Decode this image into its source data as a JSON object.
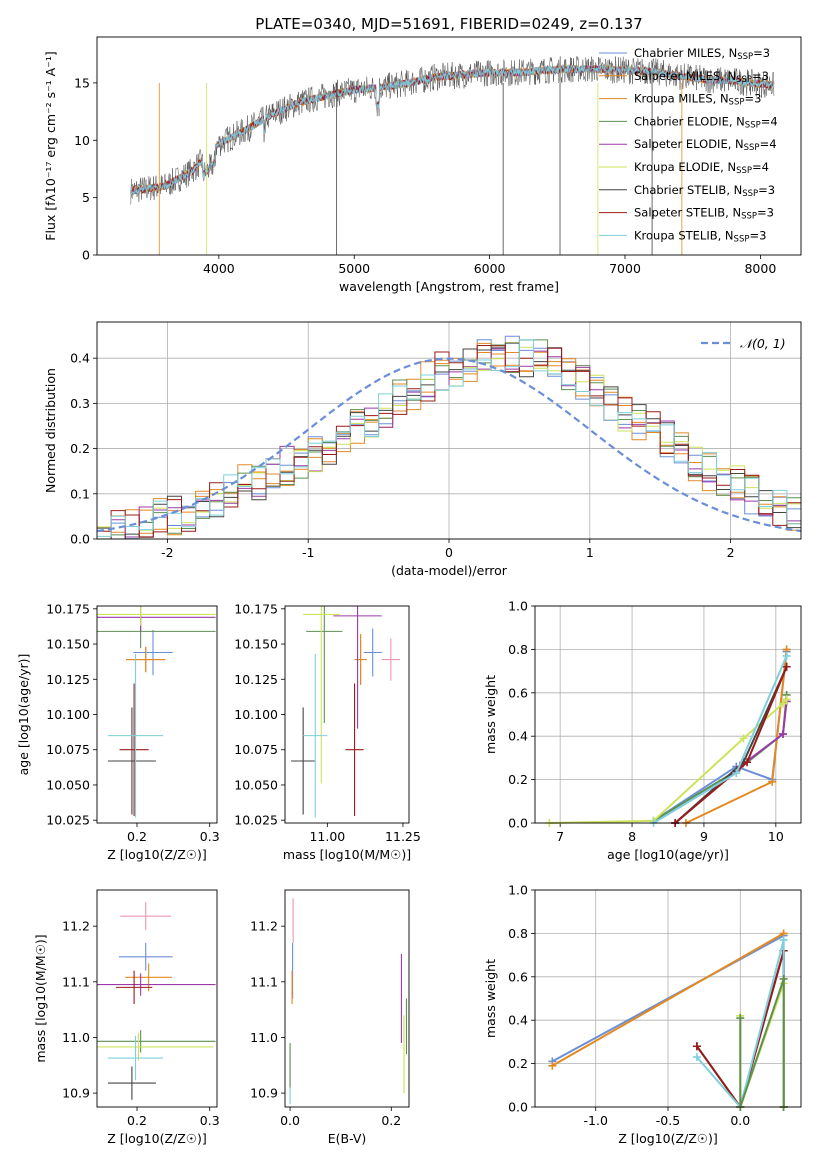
{
  "title": "PLATE=0340, MJD=51691, FIBERID=0249, z=0.137",
  "colors": {
    "chabrier_miles": "#6a8fd8",
    "salpeter_miles": "#e4891f",
    "kroupa_miles": "#e08a2c",
    "chabrier_elodie": "#5f8f52",
    "salpeter_elodie": "#9b3aa8",
    "kroupa_elodie": "#cde35a",
    "chabrier_stelib": "#444444",
    "salpeter_stelib": "#9a1b1b",
    "kroupa_stelib": "#7dd0dc",
    "extra_pink": "#e996b3",
    "normal_curve": "#6a8fd8"
  },
  "chart_data": [
    {
      "type": "line",
      "title": "PLATE=0340, MJD=51691, FIBERID=0249, z=0.137",
      "xlabel": "wavelength [Angstrom, rest frame]",
      "ylabel": "Flux [fλ10⁻¹⁷ erg cm⁻² s⁻¹ A⁻¹]",
      "xlim": [
        3100,
        8300
      ],
      "ylim": [
        0,
        19
      ],
      "xticks": [
        4000,
        5000,
        6000,
        7000,
        8000
      ],
      "yticks": [
        0,
        5,
        10,
        15
      ],
      "grid": false,
      "legend_placement": "top-right",
      "legend": [
        "Chabrier MILES, N_SSP=3",
        "Salpeter MILES, N_SSP=3",
        "Kroupa MILES, N_SSP=3",
        "Chabrier ELODIE, N_SSP=4",
        "Salpeter ELODIE, N_SSP=4",
        "Kroupa ELODIE, N_SSP=4",
        "Chabrier STELIB, N_SSP=3",
        "Salpeter STELIB, N_SSP=3",
        "Kroupa STELIB, N_SSP=3"
      ],
      "continuum": {
        "x": [
          3350,
          3600,
          3800,
          4000,
          4200,
          4400,
          4600,
          4800,
          5000,
          5200,
          5400,
          5600,
          5800,
          6000,
          6200,
          6400,
          6600,
          6800,
          7000,
          7200,
          7400,
          7600,
          7800,
          8000,
          8100
        ],
        "y": [
          5.6,
          6.0,
          7.3,
          9.7,
          10.9,
          12.3,
          13.3,
          13.9,
          14.4,
          14.6,
          15.0,
          15.5,
          15.7,
          15.9,
          15.9,
          16.1,
          16.2,
          16.2,
          16.1,
          16.0,
          15.6,
          15.3,
          15.2,
          14.9,
          14.8
        ]
      }
    },
    {
      "type": "histogram",
      "xlabel": "(data-model)/error",
      "ylabel": "Normed distribution",
      "xlim": [
        -2.5,
        2.5
      ],
      "ylim": [
        0,
        0.48
      ],
      "xticks": [
        -2,
        -1,
        0,
        1,
        2
      ],
      "yticks": [
        0.0,
        0.1,
        0.2,
        0.3,
        0.4
      ],
      "grid": true,
      "legend_placement": "top-right",
      "normal_label": "𝒩(0, 1)",
      "bins": [
        -2.5,
        -2.4,
        -2.3,
        -2.2,
        -2.1,
        -2.0,
        -1.9,
        -1.8,
        -1.7,
        -1.6,
        -1.5,
        -1.4,
        -1.3,
        -1.2,
        -1.1,
        -1.0,
        -0.9,
        -0.8,
        -0.7,
        -0.6,
        -0.5,
        -0.4,
        -0.3,
        -0.2,
        -0.1,
        0.0,
        0.1,
        0.2,
        0.3,
        0.4,
        0.5,
        0.6,
        0.7,
        0.8,
        0.9,
        1.0,
        1.1,
        1.2,
        1.3,
        1.4,
        1.5,
        1.6,
        1.7,
        1.8,
        1.9,
        2.0,
        2.1,
        2.2,
        2.3,
        2.4,
        2.5
      ],
      "base_heights": [
        0.02,
        0.025,
        0.03,
        0.04,
        0.045,
        0.05,
        0.06,
        0.07,
        0.08,
        0.1,
        0.12,
        0.13,
        0.15,
        0.16,
        0.17,
        0.19,
        0.21,
        0.23,
        0.25,
        0.27,
        0.29,
        0.31,
        0.33,
        0.35,
        0.37,
        0.38,
        0.39,
        0.4,
        0.41,
        0.41,
        0.4,
        0.4,
        0.38,
        0.36,
        0.34,
        0.32,
        0.3,
        0.28,
        0.26,
        0.24,
        0.22,
        0.2,
        0.17,
        0.15,
        0.13,
        0.12,
        0.1,
        0.08,
        0.07,
        0.06
      ]
    },
    {
      "type": "scatter",
      "xlabel": "Z [log10(Z/Z☉)]",
      "ylabel": "age  [log10(age/yr)]",
      "xlim": [
        0.145,
        0.31
      ],
      "ylim": [
        10.023,
        10.177
      ],
      "xticks": [
        0.2,
        0.3
      ],
      "yticks": [
        10.025,
        10.05,
        10.075,
        10.1,
        10.125,
        10.15,
        10.175
      ],
      "points": [
        {
          "x": 0.222,
          "y": 10.144,
          "xerr": 0.027,
          "yerr": 0.016,
          "c": "chabrier_miles"
        },
        {
          "x": 0.212,
          "y": 10.139,
          "xerr": 0.027,
          "yerr": 0.009,
          "c": "salpeter_miles"
        },
        {
          "x": 0.212,
          "y": 10.139,
          "xerr": 0.027,
          "yerr": 0.009,
          "c": "kroupa_miles"
        },
        {
          "x": 0.205,
          "y": 10.159,
          "xerr": 0.103,
          "yerr": 0.012,
          "c": "chabrier_elodie"
        },
        {
          "x": 0.205,
          "y": 10.169,
          "xerr": 0.103,
          "yerr": 0.01,
          "c": "salpeter_elodie"
        },
        {
          "x": 0.205,
          "y": 10.171,
          "xerr": 0.103,
          "yerr": 0.008,
          "c": "kroupa_elodie"
        },
        {
          "x": 0.193,
          "y": 10.067,
          "xerr": 0.033,
          "yerr": 0.038,
          "c": "chabrier_stelib"
        },
        {
          "x": 0.196,
          "y": 10.075,
          "xerr": 0.02,
          "yerr": 0.047,
          "c": "salpeter_stelib"
        },
        {
          "x": 0.198,
          "y": 10.085,
          "xerr": 0.038,
          "yerr": 0.058,
          "c": "kroupa_stelib"
        }
      ]
    },
    {
      "type": "scatter",
      "xlabel": "mass [log10(M/M☉)]",
      "xlim": [
        10.86,
        11.27
      ],
      "ylim": [
        10.023,
        10.177
      ],
      "xticks": [
        11.0,
        11.25
      ],
      "yticks": [
        10.025,
        10.05,
        10.075,
        10.1,
        10.125,
        10.15,
        10.175
      ],
      "points": [
        {
          "x": 11.15,
          "y": 10.144,
          "xerr": 0.03,
          "yerr": 0.017,
          "c": "chabrier_miles"
        },
        {
          "x": 11.11,
          "y": 10.139,
          "xerr": 0.02,
          "yerr": 0.018,
          "c": "salpeter_miles"
        },
        {
          "x": 11.11,
          "y": 10.139,
          "xerr": 0.02,
          "yerr": 0.018,
          "c": "kroupa_miles"
        },
        {
          "x": 10.99,
          "y": 10.159,
          "xerr": 0.06,
          "yerr": 0.065,
          "c": "chabrier_elodie"
        },
        {
          "x": 11.1,
          "y": 10.17,
          "xerr": 0.08,
          "yerr": 0.08,
          "c": "salpeter_elodie"
        },
        {
          "x": 10.98,
          "y": 10.171,
          "xerr": 0.06,
          "yerr": 0.12,
          "c": "kroupa_elodie"
        },
        {
          "x": 10.92,
          "y": 10.067,
          "xerr": 0.04,
          "yerr": 0.038,
          "c": "chabrier_stelib"
        },
        {
          "x": 11.09,
          "y": 10.075,
          "xerr": 0.03,
          "yerr": 0.047,
          "c": "salpeter_stelib"
        },
        {
          "x": 10.96,
          "y": 10.085,
          "xerr": 0.04,
          "yerr": 0.058,
          "c": "kroupa_stelib"
        },
        {
          "x": 11.21,
          "y": 10.139,
          "xerr": 0.03,
          "yerr": 0.015,
          "c": "extra_pink"
        }
      ]
    },
    {
      "type": "line",
      "xlabel": "age  [log10(age/yr)]",
      "ylabel": "mass weight",
      "xlim": [
        6.65,
        10.35
      ],
      "ylim": [
        0,
        1.0
      ],
      "xticks": [
        7,
        8,
        9,
        10
      ],
      "yticks": [
        0.0,
        0.2,
        0.4,
        0.6,
        0.8,
        1.0
      ],
      "grid": true,
      "series": [
        {
          "c": "chabrier_miles",
          "x": [
            8.3,
            9.45,
            9.95,
            10.15
          ],
          "y": [
            0.01,
            0.26,
            0.2,
            0.79
          ]
        },
        {
          "c": "salpeter_miles",
          "x": [
            8.75,
            9.95,
            10.15
          ],
          "y": [
            0.0,
            0.19,
            0.8
          ]
        },
        {
          "c": "chabrier_elodie",
          "x": [
            8.3,
            9.45,
            10.1,
            10.15
          ],
          "y": [
            0.01,
            0.24,
            0.41,
            0.59
          ]
        },
        {
          "c": "salpeter_elodie",
          "x": [
            8.6,
            9.5,
            10.1,
            10.15
          ],
          "y": [
            0.0,
            0.26,
            0.41,
            0.56
          ]
        },
        {
          "c": "kroupa_elodie",
          "x": [
            6.85,
            8.3,
            9.55,
            10.1,
            10.15
          ],
          "y": [
            0.0,
            0.01,
            0.39,
            0.55,
            0.57
          ]
        },
        {
          "c": "chabrier_stelib",
          "x": [
            8.6,
            9.55,
            10.15
          ],
          "y": [
            0.0,
            0.28,
            0.72
          ]
        },
        {
          "c": "salpeter_stelib",
          "x": [
            8.6,
            9.6,
            10.15
          ],
          "y": [
            0.0,
            0.28,
            0.72
          ]
        },
        {
          "c": "kroupa_stelib",
          "x": [
            8.3,
            9.45,
            10.15
          ],
          "y": [
            0.0,
            0.23,
            0.77
          ]
        }
      ]
    },
    {
      "type": "scatter",
      "xlabel": "Z [log10(Z/Z☉)]",
      "ylabel": "mass [log10(M/M☉)]",
      "xlim": [
        0.145,
        0.31
      ],
      "ylim": [
        10.875,
        11.265
      ],
      "xticks": [
        0.2,
        0.3
      ],
      "yticks": [
        10.9,
        11.0,
        11.1,
        11.2
      ],
      "points": [
        {
          "x": 0.212,
          "y": 11.145,
          "xerr": 0.037,
          "yerr": 0.025,
          "c": "chabrier_miles"
        },
        {
          "x": 0.216,
          "y": 11.108,
          "xerr": 0.032,
          "yerr": 0.025,
          "c": "salpeter_miles"
        },
        {
          "x": 0.205,
          "y": 11.095,
          "xerr": 0.103,
          "yerr": 0.02,
          "c": "salpeter_elodie"
        },
        {
          "x": 0.205,
          "y": 10.993,
          "xerr": 0.103,
          "yerr": 0.02,
          "c": "chabrier_elodie"
        },
        {
          "x": 0.202,
          "y": 10.983,
          "xerr": 0.103,
          "yerr": 0.025,
          "c": "kroupa_elodie"
        },
        {
          "x": 0.193,
          "y": 10.918,
          "xerr": 0.033,
          "yerr": 0.03,
          "c": "chabrier_stelib"
        },
        {
          "x": 0.196,
          "y": 11.09,
          "xerr": 0.025,
          "yerr": 0.03,
          "c": "salpeter_stelib"
        },
        {
          "x": 0.198,
          "y": 10.963,
          "xerr": 0.038,
          "yerr": 0.04,
          "c": "kroupa_stelib"
        },
        {
          "x": 0.212,
          "y": 11.218,
          "xerr": 0.035,
          "yerr": 0.025,
          "c": "extra_pink"
        }
      ]
    },
    {
      "type": "scatter",
      "xlabel": "E(B-V)",
      "xlim": [
        -0.01,
        0.235
      ],
      "ylim": [
        10.875,
        11.265
      ],
      "xticks": [
        0.0,
        0.2
      ],
      "yticks": [
        10.9,
        11.0,
        11.1,
        11.2
      ],
      "points": [
        {
          "x": 0.005,
          "y": 11.12,
          "xerr": 0,
          "yerr": 0.05,
          "c": "chabrier_miles"
        },
        {
          "x": 0.004,
          "y": 11.09,
          "xerr": 0,
          "yerr": 0.03,
          "c": "salpeter_miles"
        },
        {
          "x": 0.0,
          "y": 10.93,
          "xerr": 0,
          "yerr": 0.05,
          "c": "kroupa_stelib"
        },
        {
          "x": 0.0,
          "y": 10.95,
          "xerr": 0,
          "yerr": 0.04,
          "c": "chabrier_elodie"
        },
        {
          "x": 0.22,
          "y": 11.07,
          "xerr": 0,
          "yerr": 0.08,
          "c": "salpeter_elodie"
        },
        {
          "x": 0.225,
          "y": 10.97,
          "xerr": 0,
          "yerr": 0.07,
          "c": "kroupa_elodie"
        },
        {
          "x": 0.23,
          "y": 11.02,
          "xerr": 0,
          "yerr": 0.05,
          "c": "chabrier_elodie"
        },
        {
          "x": 0.006,
          "y": 11.21,
          "xerr": 0,
          "yerr": 0.04,
          "c": "extra_pink"
        }
      ]
    },
    {
      "type": "line",
      "xlabel": "Z [log10(Z/Z☉)]",
      "ylabel": "mass weight",
      "xlim": [
        -1.42,
        0.42
      ],
      "ylim": [
        0,
        1.0
      ],
      "xticks": [
        -1.0,
        -0.5,
        0.0
      ],
      "yticks": [
        0.0,
        0.2,
        0.4,
        0.6,
        0.8,
        1.0
      ],
      "grid": true,
      "series": [
        {
          "c": "chabrier_miles",
          "x": [
            -1.3,
            0.3
          ],
          "y": [
            0.21,
            0.79
          ]
        },
        {
          "c": "salpeter_miles",
          "x": [
            -1.3,
            0.3
          ],
          "y": [
            0.19,
            0.8
          ]
        },
        {
          "c": "chabrier_stelib",
          "x": [
            -0.3,
            0.0,
            0.3,
            0.3
          ],
          "y": [
            0.28,
            0.0,
            0.72,
            0.0
          ]
        },
        {
          "c": "salpeter_stelib",
          "x": [
            -0.3,
            0.0,
            0.3,
            0.3
          ],
          "y": [
            0.28,
            0.0,
            0.72,
            0.0
          ]
        },
        {
          "c": "kroupa_stelib",
          "x": [
            -0.3,
            0.0,
            0.3,
            0.3
          ],
          "y": [
            0.23,
            0.0,
            0.77,
            0.0
          ]
        },
        {
          "c": "kroupa_elodie",
          "x": [
            0.0,
            0.0,
            0.3,
            0.3
          ],
          "y": [
            0.42,
            0.0,
            0.57,
            0.0
          ]
        },
        {
          "c": "chabrier_elodie",
          "x": [
            0.0,
            0.0,
            0.3,
            0.3
          ],
          "y": [
            0.41,
            0.0,
            0.59,
            0.0
          ]
        }
      ]
    }
  ]
}
